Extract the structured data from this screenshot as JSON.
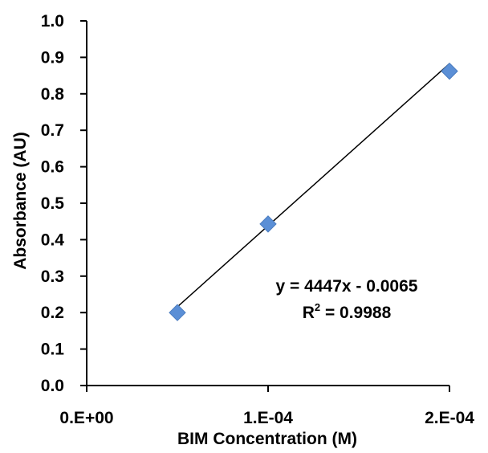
{
  "chart_data": {
    "type": "scatter",
    "title": "",
    "xlabel": "BIM Concentration (M)",
    "ylabel": "Absorbance (AU)",
    "xlim": [
      0,
      0.0002
    ],
    "ylim": [
      0,
      1.0
    ],
    "xticks": [
      0,
      0.0001,
      0.0002
    ],
    "xtick_labels": [
      "0.E+00",
      "1.E-04",
      "2.E-04"
    ],
    "yticks": [
      0,
      0.1,
      0.2,
      0.3,
      0.4,
      0.5,
      0.6,
      0.7,
      0.8,
      0.9,
      1.0
    ],
    "ytick_labels": [
      "0.0",
      "0.1",
      "0.2",
      "0.3",
      "0.4",
      "0.5",
      "0.6",
      "0.7",
      "0.8",
      "0.9",
      "1.0"
    ],
    "grid": false,
    "marker": "diamond",
    "marker_color": "#5b8fd6",
    "series": [
      {
        "x": [
          5e-05,
          0.0001,
          0.0002
        ],
        "y": [
          0.2,
          0.443,
          0.862
        ]
      }
    ],
    "trendline": {
      "type": "linear",
      "slope": 4447,
      "intercept": -0.0065,
      "x_range": [
        5e-05,
        0.0002
      ],
      "color": "#000000",
      "equation_label": "y = 4447x - 0.0065",
      "r2_prefix": "R",
      "r2_suffix": " = 0.9988"
    }
  }
}
